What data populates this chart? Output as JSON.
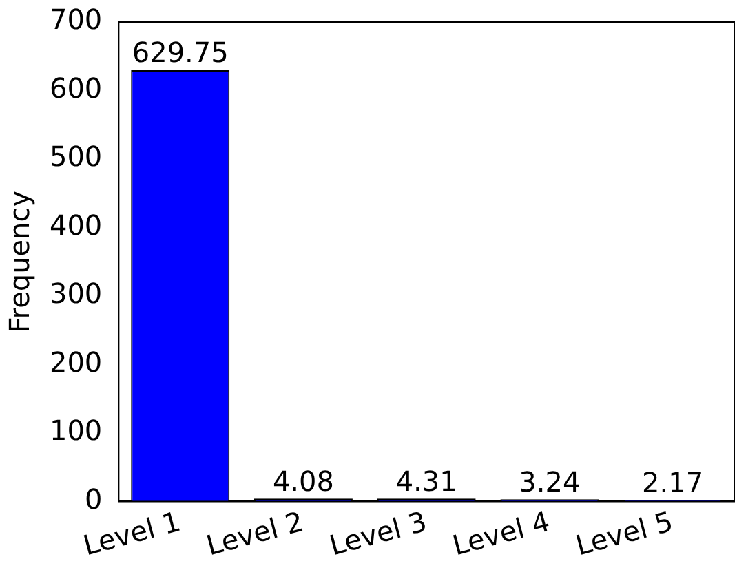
{
  "chart_data": {
    "type": "bar",
    "ylabel": "Frequency",
    "categories": [
      "Level 1",
      "Level 2",
      "Level 3",
      "Level 4",
      "Level 5"
    ],
    "values": [
      629.75,
      4.08,
      4.31,
      3.24,
      2.17
    ],
    "color": "#0000ff",
    "ylim": [
      0,
      700
    ],
    "yticks": [
      0,
      100,
      200,
      300,
      400,
      500,
      600,
      700
    ],
    "grid": false,
    "data_labels": true,
    "legend": false
  }
}
